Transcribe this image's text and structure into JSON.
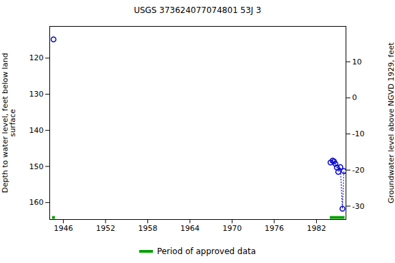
{
  "chart_data": {
    "type": "scatter",
    "title": "USGS 373624077074801 53J  3",
    "y_label": "Depth to water level, feet below land\nsurface",
    "y2_label": "Groundwater level above NGVD 1929, feet",
    "xlim": [
      1944.06,
      1986.2
    ],
    "xticks": [
      1946,
      1952,
      1958,
      1964,
      1970,
      1976,
      1982
    ],
    "ylim": [
      111.2,
      164.7
    ],
    "yticks": [
      120,
      130,
      140,
      150,
      160
    ],
    "y2lim": [
      19.8,
      -33.7
    ],
    "y2ticks": [
      10,
      0,
      -10,
      -20,
      -30
    ],
    "series": [
      {
        "color": "#0000cc",
        "marker": "circle",
        "line_style": "dotted",
        "x": [
          1944.6
        ],
        "values": [
          114.8
        ]
      },
      {
        "color": "#0000cc",
        "marker": "circle",
        "line_style": "dotted",
        "x": [
          1984.0,
          1984.3,
          1984.5,
          1984.7,
          1984.9,
          1985.1,
          1985.4,
          1985.7,
          1985.9
        ],
        "values": [
          148.9,
          148.4,
          148.6,
          149.3,
          150.3,
          151.5,
          150.2,
          161.7,
          151.3
        ]
      }
    ],
    "approved": {
      "name": "Period of approved data",
      "color": "#00a000",
      "periods": [
        [
          1944.4,
          1944.8
        ],
        [
          1983.9,
          1986.0
        ]
      ]
    }
  }
}
